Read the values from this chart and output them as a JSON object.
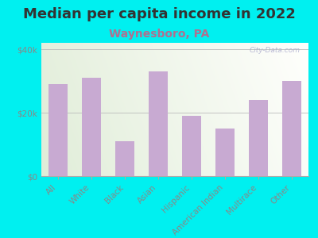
{
  "title": "Median per capita income in 2022",
  "subtitle": "Waynesboro, PA",
  "categories": [
    "All",
    "White",
    "Black",
    "Asian",
    "Hispanic",
    "American Indian",
    "Multirace",
    "Other"
  ],
  "values": [
    29000,
    31000,
    11000,
    33000,
    19000,
    15000,
    24000,
    30000
  ],
  "bar_color": "#c8aad2",
  "background_color": "#00f0f0",
  "title_color": "#333333",
  "subtitle_color": "#b07090",
  "tick_label_color": "#888888",
  "ytick_label_color": "#888888",
  "ylim": [
    0,
    42000
  ],
  "yticks": [
    0,
    20000,
    40000
  ],
  "ytick_labels": [
    "$0",
    "$20k",
    "$40k"
  ],
  "watermark": "City-Data.com",
  "title_fontsize": 13,
  "subtitle_fontsize": 10,
  "tick_fontsize": 7.5
}
